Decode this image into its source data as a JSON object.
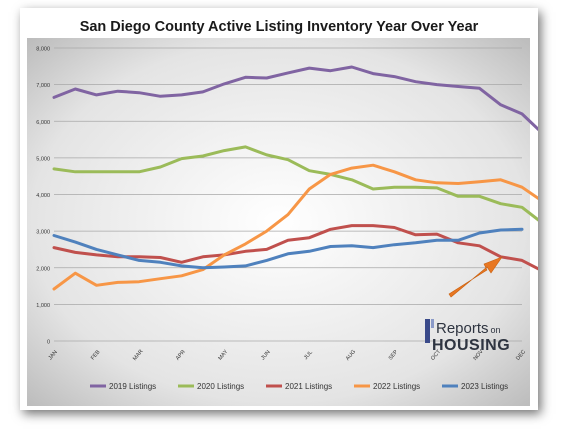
{
  "chart_data": {
    "type": "line",
    "title": "San Diego County Active Listing Inventory Year Over Year",
    "xlabel": "",
    "ylabel": "",
    "ylim": [
      0,
      8000
    ],
    "yticks": [
      "0",
      "1,000",
      "2,000",
      "3,000",
      "4,000",
      "5,000",
      "6,000",
      "7,000",
      "8,000"
    ],
    "categories": [
      "JAN",
      "FEB",
      "MAR",
      "APR",
      "MAY",
      "JUN",
      "JUL",
      "AUG",
      "SEP",
      "OCT",
      "NOV",
      "DEC"
    ],
    "legend_position": "bottom",
    "grid": true,
    "series": [
      {
        "name": "2019 Listings",
        "color": "#8064A2",
        "x": [
          0,
          0.5,
          1,
          1.5,
          2,
          2.5,
          3,
          3.5,
          4,
          4.5,
          5,
          5.5,
          6,
          6.5,
          7,
          7.5,
          8,
          8.5,
          9,
          9.5,
          10,
          10.5,
          11,
          11.5,
          12
        ],
        "values": [
          6650,
          6880,
          6720,
          6820,
          6780,
          6680,
          6720,
          6800,
          7020,
          7200,
          7180,
          7320,
          7450,
          7380,
          7480,
          7300,
          7220,
          7080,
          7000,
          6950,
          6900,
          6450,
          6200,
          5650,
          4850
        ]
      },
      {
        "name": "2020 Listings",
        "color": "#9BBB59",
        "x": [
          0,
          0.5,
          1,
          1.5,
          2,
          2.5,
          3,
          3.5,
          4,
          4.5,
          5,
          5.5,
          6,
          6.5,
          7,
          7.5,
          8,
          8.5,
          9,
          9.5,
          10,
          10.5,
          11,
          11.5,
          12
        ],
        "values": [
          4700,
          4620,
          4620,
          4620,
          4620,
          4750,
          4980,
          5050,
          5200,
          5300,
          5080,
          4950,
          4650,
          4550,
          4400,
          4150,
          4200,
          4200,
          4180,
          3950,
          3950,
          3750,
          3650,
          3200,
          2580
        ]
      },
      {
        "name": "2021 Listings",
        "color": "#C0504D",
        "x": [
          0,
          0.5,
          1,
          1.5,
          2,
          2.5,
          3,
          3.5,
          4,
          4.5,
          5,
          5.5,
          6,
          6.5,
          7,
          7.5,
          8,
          8.5,
          9,
          9.5,
          10,
          10.5,
          11,
          11.5,
          12
        ],
        "values": [
          2550,
          2420,
          2350,
          2300,
          2300,
          2280,
          2150,
          2300,
          2350,
          2450,
          2500,
          2750,
          2820,
          3050,
          3150,
          3150,
          3100,
          2900,
          2920,
          2680,
          2600,
          2300,
          2200,
          1900,
          1400
        ]
      },
      {
        "name": "2022 Listings",
        "color": "#F79646",
        "x": [
          0,
          0.5,
          1,
          1.5,
          2,
          2.5,
          3,
          3.5,
          4,
          4.5,
          5,
          5.5,
          6,
          6.5,
          7,
          7.5,
          8,
          8.5,
          9,
          9.5,
          10,
          10.5,
          11,
          11.5,
          12
        ],
        "values": [
          1420,
          1850,
          1520,
          1600,
          1620,
          1700,
          1780,
          1950,
          2350,
          2650,
          3000,
          3450,
          4150,
          4550,
          4720,
          4800,
          4620,
          4400,
          4320,
          4300,
          4350,
          4400,
          4200,
          3800,
          3150
        ]
      },
      {
        "name": "2023 Listings",
        "color": "#4F81BD",
        "x": [
          0,
          0.5,
          1,
          1.5,
          2,
          2.5,
          3,
          3.5,
          4,
          4.5,
          5,
          5.5,
          6,
          6.5,
          7,
          7.5,
          8,
          8.5,
          9,
          9.5,
          10,
          10.5,
          11
        ],
        "values": [
          2880,
          2700,
          2500,
          2350,
          2200,
          2150,
          2050,
          2000,
          2020,
          2050,
          2200,
          2380,
          2450,
          2580,
          2600,
          2550,
          2630,
          2680,
          2750,
          2750,
          2950,
          3030,
          3050
        ]
      }
    ]
  },
  "watermark": {
    "line1": "Reports",
    "line1_small": "on",
    "line2": "HOUSING"
  },
  "annotation": {
    "icon": "arrow-icon",
    "color": "#E87722"
  }
}
